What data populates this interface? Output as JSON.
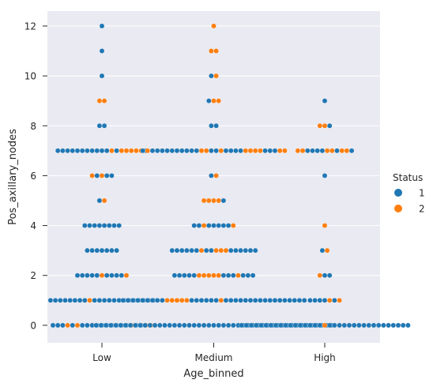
{
  "chart_data": {
    "type": "swarm",
    "xlabel": "Age_binned",
    "ylabel": "Pos_axillary_nodes",
    "categories": [
      "Low",
      "Medium",
      "High"
    ],
    "ylim": [
      -0.7,
      12.6
    ],
    "yticks": [
      0,
      2,
      4,
      6,
      8,
      10,
      12
    ],
    "grid": true,
    "legend": {
      "title": "Status",
      "placement": "right",
      "entries": [
        {
          "label": "1",
          "color": "#1f77b4"
        },
        {
          "label": "2",
          "color": "#ff7f0e"
        }
      ]
    },
    "groups": [
      {
        "category": "Low",
        "values": [
          {
            "y": 0,
            "colors": [
              1,
              1,
              1,
              2,
              1,
              2,
              1,
              1,
              1,
              1,
              1,
              1,
              1,
              1,
              1,
              1,
              2,
              1,
              1,
              2,
              2
            ]
          },
          {
            "y": 1,
            "colors": [
              1,
              1,
              1,
              1,
              1,
              1,
              1,
              1,
              2,
              1,
              1,
              1,
              1,
              1,
              1,
              1,
              1,
              1,
              1,
              1,
              1,
              1
            ]
          },
          {
            "y": 2,
            "colors": [
              1,
              1,
              1,
              1,
              1,
              2,
              1,
              1,
              1,
              1,
              2
            ]
          },
          {
            "y": 3,
            "colors": [
              1,
              1,
              1,
              1,
              1,
              1,
              1
            ]
          },
          {
            "y": 4,
            "colors": [
              1,
              1,
              1,
              1,
              1,
              1,
              1,
              1
            ]
          },
          {
            "y": 5,
            "colors": [
              1,
              2
            ]
          },
          {
            "y": 6,
            "colors": [
              2,
              1,
              2,
              1,
              1
            ]
          },
          {
            "y": 7,
            "colors": [
              1,
              1,
              1,
              1,
              1,
              1,
              1,
              1,
              1,
              1,
              1,
              2,
              1,
              2,
              2,
              2,
              2,
              2,
              1
            ]
          },
          {
            "y": 8,
            "colors": [
              1,
              1
            ]
          },
          {
            "y": 9,
            "colors": [
              2,
              2
            ]
          },
          {
            "y": 10,
            "colors": [
              1
            ]
          },
          {
            "y": 11,
            "colors": [
              1
            ]
          },
          {
            "y": 12,
            "colors": [
              1
            ]
          }
        ]
      },
      {
        "category": "Medium",
        "values": [
          {
            "y": 0,
            "colors": [
              1,
              1,
              1,
              1,
              1,
              1,
              1,
              1,
              1,
              1,
              1,
              1,
              1,
              1,
              1,
              1,
              1,
              1,
              1,
              1,
              1,
              1,
              1,
              1,
              1,
              1,
              1,
              1,
              1,
              1,
              1,
              1,
              1,
              1,
              1,
              1,
              1,
              1,
              1,
              1,
              1,
              1,
              1,
              1,
              1,
              1,
              1,
              1,
              1
            ]
          },
          {
            "y": 1,
            "colors": [
              1,
              1,
              1,
              1,
              1,
              1,
              1,
              1,
              1,
              2,
              2,
              2,
              2,
              2,
              1,
              1,
              1,
              1,
              1,
              1,
              2,
              1,
              1,
              1,
              1,
              1,
              1,
              1,
              1,
              1,
              1,
              1,
              1,
              1,
              1,
              1,
              1,
              1
            ]
          },
          {
            "y": 2,
            "colors": [
              1,
              1,
              1,
              1,
              1,
              2,
              2,
              2,
              2,
              2,
              1,
              1,
              1,
              2,
              1,
              1,
              1
            ]
          },
          {
            "y": 3,
            "colors": [
              1,
              1,
              1,
              1,
              1,
              1,
              2,
              1,
              1,
              2,
              2,
              2,
              1,
              1,
              1,
              1,
              1,
              1
            ]
          },
          {
            "y": 4,
            "colors": [
              1,
              1,
              2,
              1,
              1,
              1,
              1,
              1,
              2
            ]
          },
          {
            "y": 5,
            "colors": [
              2,
              2,
              2,
              2,
              1
            ]
          },
          {
            "y": 6,
            "colors": [
              1,
              2
            ]
          },
          {
            "y": 7,
            "colors": [
              1,
              2,
              1,
              1,
              1,
              1,
              1,
              1,
              1,
              1,
              1,
              1,
              2,
              2,
              1,
              1,
              2,
              1,
              1,
              1,
              1,
              2,
              2,
              2,
              2,
              1,
              1,
              1,
              2,
              2
            ]
          },
          {
            "y": 8,
            "colors": [
              1,
              1
            ]
          },
          {
            "y": 9,
            "colors": [
              1,
              2,
              2
            ]
          },
          {
            "y": 10,
            "colors": [
              1,
              2
            ]
          },
          {
            "y": 11,
            "colors": [
              2,
              2
            ]
          },
          {
            "y": 12,
            "colors": [
              2
            ]
          }
        ]
      },
      {
        "category": "High",
        "values": [
          {
            "y": 0,
            "colors": [
              1,
              1,
              1,
              1,
              1,
              1,
              1,
              1,
              1,
              1,
              1,
              1,
              1,
              1,
              1,
              1,
              1,
              2,
              1,
              1,
              1,
              1,
              1,
              1,
              1,
              1,
              1,
              1,
              1,
              1,
              1,
              1,
              1,
              1,
              1
            ]
          },
          {
            "y": 1,
            "colors": [
              1,
              1,
              1,
              1,
              2,
              1,
              2
            ]
          },
          {
            "y": 2,
            "colors": [
              2,
              1,
              1
            ]
          },
          {
            "y": 3,
            "colors": [
              1,
              2
            ]
          },
          {
            "y": 4,
            "colors": [
              2
            ]
          },
          {
            "y": 6,
            "colors": [
              1
            ]
          },
          {
            "y": 7,
            "colors": [
              2,
              2,
              1,
              1,
              1,
              1,
              2,
              2,
              1,
              2,
              2,
              1
            ]
          },
          {
            "y": 8,
            "colors": [
              2,
              2,
              1
            ]
          },
          {
            "y": 9,
            "colors": [
              1
            ]
          }
        ]
      }
    ]
  }
}
